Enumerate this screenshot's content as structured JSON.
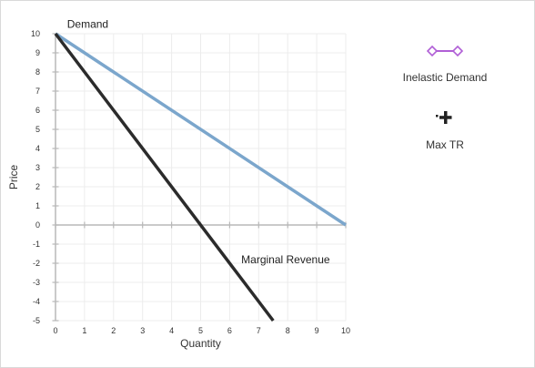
{
  "chart_data": {
    "type": "line",
    "title": "",
    "xlabel": "Quantity",
    "ylabel": "Price",
    "xlim": [
      0,
      10
    ],
    "ylim": [
      -5,
      10
    ],
    "x_ticks": [
      0,
      1,
      2,
      3,
      4,
      5,
      6,
      7,
      8,
      9,
      10
    ],
    "y_ticks": [
      -5,
      -4,
      -3,
      -2,
      -1,
      0,
      1,
      2,
      3,
      4,
      5,
      6,
      7,
      8,
      9,
      10
    ],
    "grid": true,
    "series": [
      {
        "name": "Demand",
        "color": "#7ba6cc",
        "points": [
          [
            0,
            10
          ],
          [
            10,
            0
          ]
        ]
      },
      {
        "name": "Marginal Revenue",
        "color": "#2b2b2b",
        "points": [
          [
            0,
            10
          ],
          [
            7.5,
            -5
          ]
        ]
      }
    ],
    "annotations": [
      {
        "text": "Demand",
        "x": 0.4,
        "y": 10.3
      },
      {
        "text": "Marginal Revenue",
        "x": 6.4,
        "y": -2
      }
    ]
  },
  "legend": [
    {
      "label": "Inelastic Demand",
      "icon": "diamond-line-icon",
      "color": "#b05fd6"
    },
    {
      "label": "Max TR",
      "icon": "plus-dot-icon",
      "color": "#222222"
    }
  ]
}
